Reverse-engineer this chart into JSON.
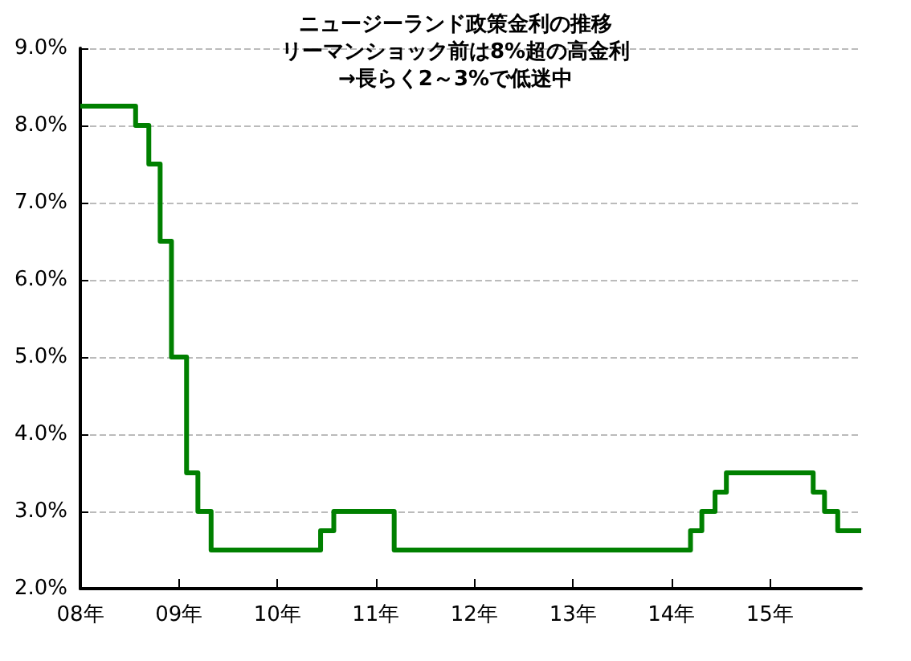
{
  "chart_data": {
    "type": "step",
    "title": "ニュージーランド政策金利の推移",
    "subtitle": "リーマンショック前は8%超の高金利\n→長らく2～3%で低迷中",
    "x": [
      "2008-01-01",
      "2008-07-24",
      "2008-09-11",
      "2008-10-23",
      "2008-12-04",
      "2009-01-29",
      "2009-03-12",
      "2009-04-30",
      "2010-06-10",
      "2010-07-29",
      "2011-03-10",
      "2014-03-13",
      "2014-04-24",
      "2014-06-12",
      "2014-07-24",
      "2015-06-11",
      "2015-07-23",
      "2015-09-10",
      "2015-12-06"
    ],
    "series": [
      {
        "color": "#008000",
        "values": [
          8.25,
          8.0,
          7.5,
          6.5,
          5.0,
          3.5,
          3.0,
          2.5,
          2.75,
          3.0,
          2.5,
          2.75,
          3.0,
          3.25,
          3.5,
          3.25,
          3.0,
          2.75,
          2.75
        ]
      }
    ],
    "xlim": [
      "2008-01-01",
      "2015-12-06"
    ],
    "xticks": [
      {
        "value": "2008-01-01",
        "label": "08年"
      },
      {
        "value": "2009-01-01",
        "label": "09年"
      },
      {
        "value": "2010-01-01",
        "label": "10年"
      },
      {
        "value": "2011-01-01",
        "label": "11年"
      },
      {
        "value": "2012-01-01",
        "label": "12年"
      },
      {
        "value": "2013-01-01",
        "label": "13年"
      },
      {
        "value": "2014-01-01",
        "label": "14年"
      },
      {
        "value": "2015-01-01",
        "label": "15年"
      }
    ],
    "ylim": [
      2,
      9
    ],
    "yticks": [
      {
        "value": 2,
        "label": "2.0%"
      },
      {
        "value": 3,
        "label": "3.0%"
      },
      {
        "value": 4,
        "label": "4.0%"
      },
      {
        "value": 5,
        "label": "5.0%"
      },
      {
        "value": 6,
        "label": "6.0%"
      },
      {
        "value": 7,
        "label": "7.0%"
      },
      {
        "value": 8,
        "label": "8.0%"
      },
      {
        "value": 9,
        "label": "9.0%"
      }
    ],
    "grid": "y",
    "marker": "none",
    "line_style": "solid"
  }
}
